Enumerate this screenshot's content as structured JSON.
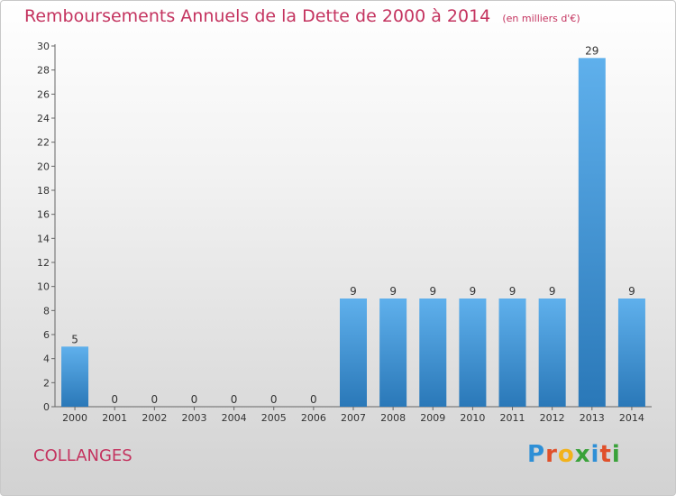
{
  "header": {
    "title": "Remboursements Annuels de la Dette de 2000 à 2014",
    "subtitle": "(en milliers d'€)"
  },
  "footer": {
    "commune": "COLLANGES",
    "brand_letters": [
      "P",
      "r",
      "o",
      "x",
      "i",
      "t",
      "i"
    ],
    "brand_colors": [
      "#2e8fd6",
      "#e0502a",
      "#f2b21a",
      "#3aa23a",
      "#2e8fd6",
      "#e0502a",
      "#3aa23a"
    ]
  },
  "chart_data": {
    "type": "bar",
    "categories": [
      "2000",
      "2001",
      "2002",
      "2003",
      "2004",
      "2005",
      "2006",
      "2007",
      "2008",
      "2009",
      "2010",
      "2011",
      "2012",
      "2013",
      "2014"
    ],
    "values": [
      5,
      0,
      0,
      0,
      0,
      0,
      0,
      9,
      9,
      9,
      9,
      9,
      9,
      29,
      9
    ],
    "title": "Remboursements Annuels de la Dette de 2000 à 2014",
    "ylim": [
      0,
      30
    ],
    "yticks": [
      0,
      2,
      4,
      6,
      8,
      10,
      12,
      14,
      16,
      18,
      20,
      22,
      24,
      26,
      28,
      30
    ],
    "grid": false,
    "bar_color": "#3d96d9"
  }
}
